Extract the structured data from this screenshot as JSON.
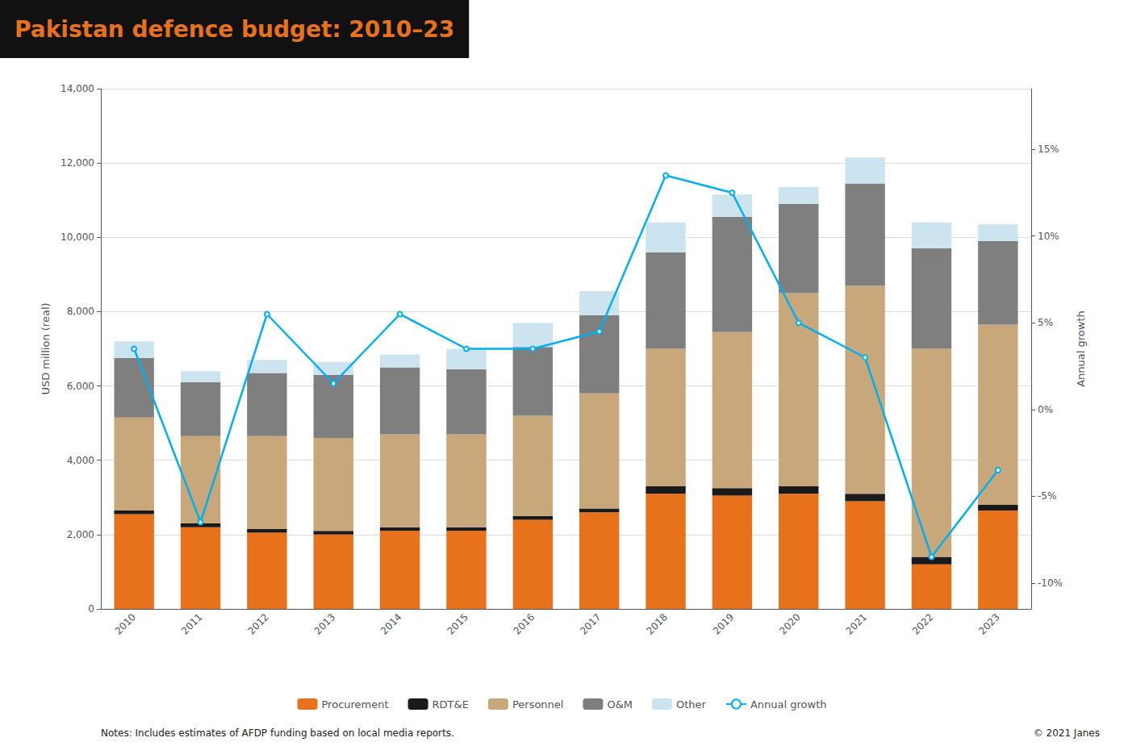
{
  "chart_data": {
    "type": "bar",
    "title": "Pakistan defence budget: 2010–23",
    "categories": [
      "2010",
      "2011",
      "2012",
      "2013",
      "2014",
      "2015",
      "2016",
      "2017",
      "2018",
      "2019",
      "2020",
      "2021",
      "2022",
      "2023"
    ],
    "stacked": true,
    "grid": true,
    "legend": "bottom",
    "ylabel": "USD million (real)",
    "y2label": "Annual growth",
    "ylim": [
      0,
      14000
    ],
    "yticks": [
      0,
      {
        "value": 2000,
        "label": "2,000"
      },
      {
        "value": 4000,
        "label": "4,000"
      },
      {
        "value": 6000,
        "label": "6,000"
      },
      {
        "value": 8000,
        "label": "8,000"
      },
      {
        "value": 10000,
        "label": "10,000"
      },
      {
        "value": 12000,
        "label": "12,000"
      },
      {
        "value": 14000,
        "label": "14,000"
      }
    ],
    "y2lim": [
      -0.115,
      0.185
    ],
    "y2ticks": [
      {
        "value": -0.1,
        "label": "-10%"
      },
      {
        "value": -0.05,
        "label": "-5%"
      },
      {
        "value": 0,
        "label": "0%"
      },
      {
        "value": 0.05,
        "label": "5%"
      },
      {
        "value": 0.1,
        "label": "10%"
      },
      {
        "value": 0.15,
        "label": "15%"
      }
    ],
    "series": [
      {
        "name": "Procurement",
        "type": "bar",
        "color": "#e8721c",
        "values": [
          2550,
          2200,
          2050,
          2000,
          2100,
          2100,
          2400,
          2600,
          3100,
          3050,
          3100,
          2900,
          1200,
          2650
        ]
      },
      {
        "name": "RDT&E",
        "type": "bar",
        "color": "#1a1a1a",
        "values": [
          100,
          100,
          100,
          100,
          100,
          100,
          100,
          100,
          200,
          200,
          200,
          200,
          200,
          150
        ]
      },
      {
        "name": "Personnel",
        "type": "bar",
        "color": "#c8a87a",
        "values": [
          2500,
          2350,
          2500,
          2500,
          2500,
          2500,
          2700,
          3100,
          3700,
          4200,
          5200,
          5600,
          5600,
          4850
        ]
      },
      {
        "name": "O&M",
        "type": "bar",
        "color": "#7f7f7f",
        "values": [
          1600,
          1450,
          1700,
          1700,
          1800,
          1750,
          1850,
          2100,
          2600,
          3100,
          2400,
          2750,
          2700,
          2250
        ]
      },
      {
        "name": "Other",
        "type": "bar",
        "color": "#cce4f0",
        "values": [
          450,
          300,
          350,
          350,
          350,
          550,
          650,
          650,
          800,
          600,
          450,
          700,
          700,
          450
        ]
      },
      {
        "name": "Annual growth",
        "type": "line",
        "axis": "y2",
        "color": "#00b0f0",
        "values": [
          0.035,
          -0.065,
          0.055,
          0.015,
          0.055,
          0.035,
          0.035,
          0.045,
          0.135,
          0.125,
          0.05,
          0.03,
          -0.085,
          -0.035
        ]
      }
    ],
    "annotations": [
      "Notes: Includes estimates of AFDP funding based on local media reports.",
      "© 2021 Janes"
    ]
  }
}
